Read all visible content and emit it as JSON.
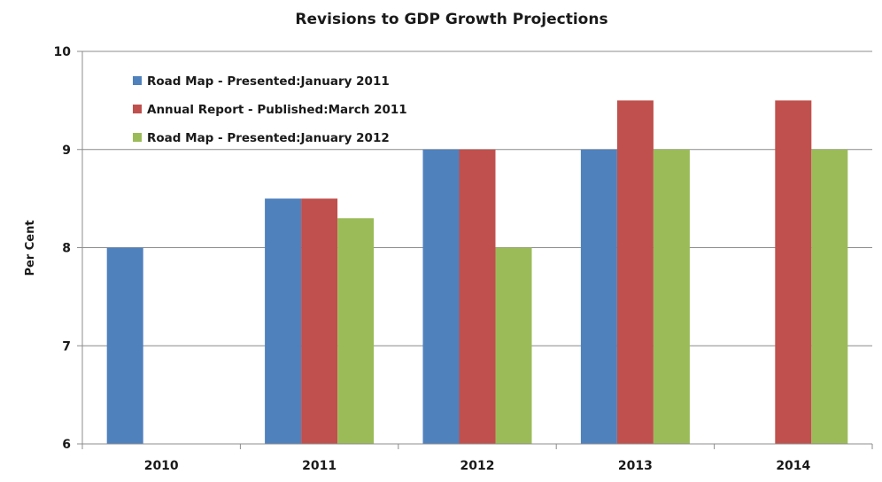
{
  "chart_data": {
    "type": "bar",
    "title": "Revisions to GDP Growth Projections",
    "xlabel": "",
    "ylabel": "Per Cent",
    "categories": [
      "2010",
      "2011",
      "2012",
      "2013",
      "2014"
    ],
    "ylim": [
      6,
      10
    ],
    "yticks": [
      6,
      7,
      8,
      9,
      10
    ],
    "grid": true,
    "legend_position": "top-left",
    "series": [
      {
        "name": "Road Map - Presented:January 2011",
        "color": "#4f81bd",
        "values": [
          8,
          8.5,
          9,
          9,
          null
        ]
      },
      {
        "name": "Annual Report - Published:March 2011",
        "color": "#c0504d",
        "values": [
          null,
          8.5,
          9,
          9.5,
          9.5
        ]
      },
      {
        "name": "Road Map - Presented:January 2012",
        "color": "#9bbb59",
        "values": [
          null,
          8.3,
          8,
          9,
          9
        ]
      }
    ]
  }
}
